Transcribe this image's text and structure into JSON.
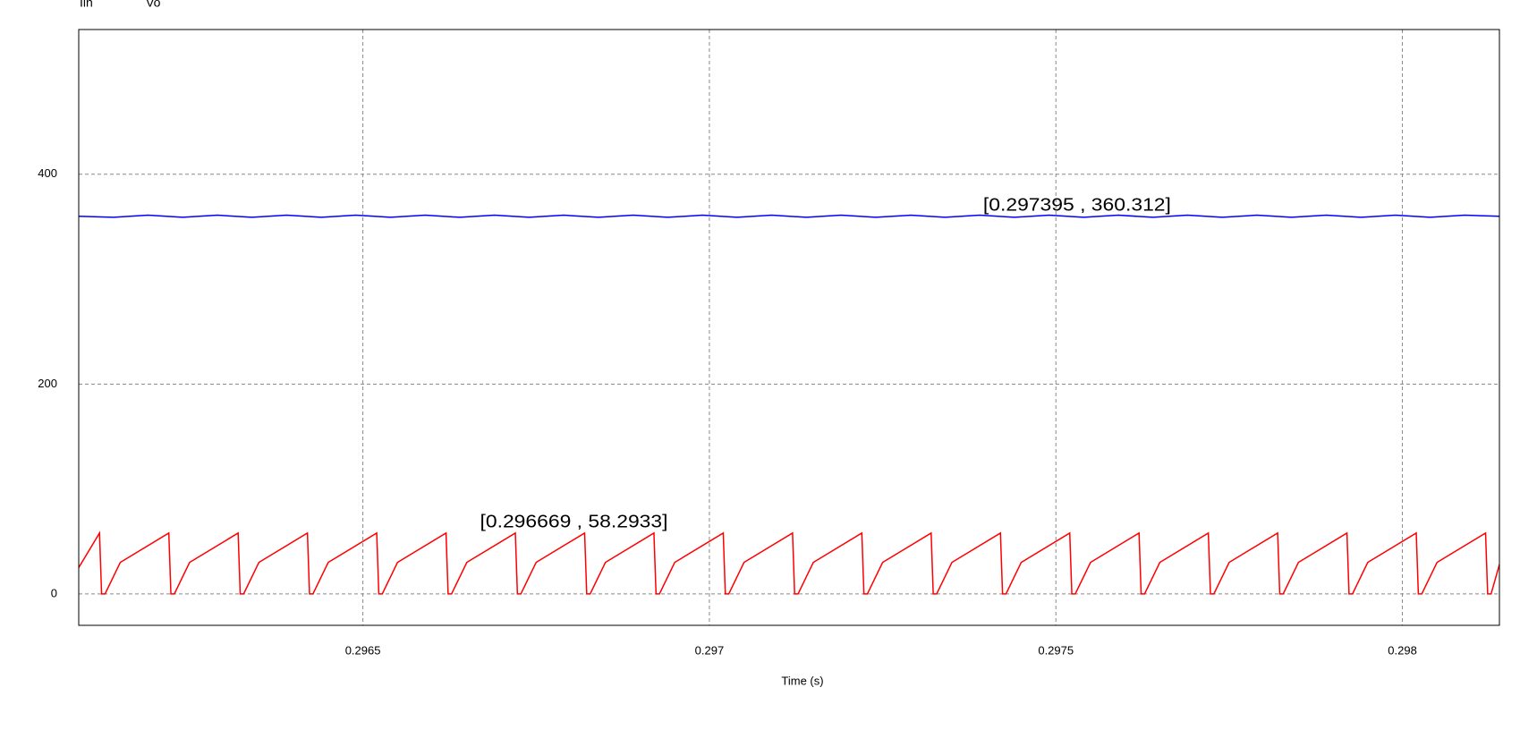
{
  "chart_data": {
    "type": "line",
    "xlabel": "Time (s)",
    "xlim": [
      0.29609,
      0.29814
    ],
    "ylim": [
      -30,
      538
    ],
    "xticks": [
      0.2965,
      0.297,
      0.2975,
      0.298
    ],
    "yticks": [
      0,
      200,
      400
    ],
    "grid": true,
    "series": [
      {
        "name": "Iin",
        "color": "#ff0000",
        "x": [
          0.29609,
          0.29612,
          0.296123,
          0.296128,
          0.29615,
          0.29622,
          0.296223,
          0.296228,
          0.29625,
          0.29632,
          0.296323,
          0.296328,
          0.29635,
          0.29642,
          0.296423,
          0.296428,
          0.29645,
          0.29652,
          0.296523,
          0.296528,
          0.29655,
          0.29662,
          0.296623,
          0.296628,
          0.29665,
          0.29672,
          0.296723,
          0.296728,
          0.29675,
          0.29682,
          0.296823,
          0.296828,
          0.29685,
          0.29692,
          0.296923,
          0.296928,
          0.29695,
          0.29702,
          0.297023,
          0.297028,
          0.29705,
          0.29712,
          0.297123,
          0.297128,
          0.29715,
          0.29722,
          0.297223,
          0.297228,
          0.29725,
          0.29732,
          0.297323,
          0.297328,
          0.29735,
          0.29742,
          0.297423,
          0.297428,
          0.29745,
          0.29752,
          0.297523,
          0.297528,
          0.29755,
          0.29762,
          0.297623,
          0.297628,
          0.29765,
          0.29772,
          0.297723,
          0.297728,
          0.29775,
          0.29782,
          0.297823,
          0.297828,
          0.29785,
          0.29792,
          0.297923,
          0.297928,
          0.29795,
          0.29802,
          0.298023,
          0.298028,
          0.29805,
          0.29812,
          0.298123,
          0.298128,
          0.29814
        ],
        "values": [
          25,
          58,
          0,
          0,
          30,
          58,
          0,
          0,
          30,
          58,
          0,
          0,
          30,
          58,
          0,
          0,
          30,
          58,
          0,
          0,
          30,
          58,
          0,
          0,
          30,
          58,
          0,
          0,
          30,
          58,
          0,
          0,
          30,
          58,
          0,
          0,
          30,
          58,
          0,
          0,
          30,
          58,
          0,
          0,
          30,
          58,
          0,
          0,
          30,
          58,
          0,
          0,
          30,
          58,
          0,
          0,
          30,
          58,
          0,
          0,
          30,
          58,
          0,
          0,
          30,
          58,
          0,
          0,
          30,
          58,
          0,
          0,
          30,
          58,
          0,
          0,
          30,
          58,
          0,
          0,
          30,
          58,
          0,
          0,
          28
        ]
      },
      {
        "name": "Vo",
        "color": "#0000ff",
        "x": [
          0.29609,
          0.29614,
          0.29619,
          0.29624,
          0.29629,
          0.29634,
          0.29639,
          0.29644,
          0.29649,
          0.29654,
          0.29659,
          0.29664,
          0.29669,
          0.29674,
          0.29679,
          0.29684,
          0.29689,
          0.29694,
          0.29699,
          0.29704,
          0.29709,
          0.29714,
          0.29719,
          0.29724,
          0.29729,
          0.29734,
          0.29739,
          0.29744,
          0.29749,
          0.29754,
          0.29759,
          0.29764,
          0.29769,
          0.29774,
          0.29779,
          0.29784,
          0.29789,
          0.29794,
          0.29799,
          0.29804,
          0.29809,
          0.29814
        ],
        "values": [
          360,
          359,
          361,
          359,
          361,
          359,
          361,
          359,
          361,
          359,
          361,
          359,
          361,
          359,
          361,
          359,
          361,
          359,
          361,
          359,
          361,
          359,
          361,
          359,
          361,
          359,
          361,
          359,
          361,
          359,
          361,
          359,
          361,
          359,
          361,
          359,
          361,
          359,
          361,
          359,
          361,
          360
        ]
      }
    ],
    "annotations": [
      {
        "text": "[0.296669 , 58.2933]",
        "x": 0.296669,
        "y": 58.2933,
        "color": "#ff0000"
      },
      {
        "text": "[0.297395 , 360.312]",
        "x": 0.297395,
        "y": 360.312,
        "color": "#ff0000"
      }
    ]
  }
}
